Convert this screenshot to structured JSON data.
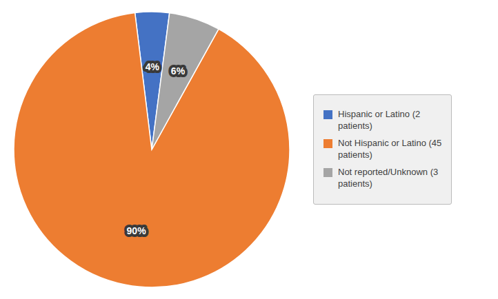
{
  "chart_data": {
    "type": "pie",
    "categories": [
      "Hispanic or Latino (2\npatients)",
      "Not Hispanic or Latino (45\npatients)",
      "Not reported/Unknown (3\npatients)"
    ],
    "values": [
      4,
      90,
      6
    ],
    "value_labels": [
      "4%",
      "90%",
      "6%"
    ],
    "colors": [
      "#4472C4",
      "#ED7D31",
      "#A5A5A5"
    ],
    "data_labels": true,
    "legend": "right"
  }
}
